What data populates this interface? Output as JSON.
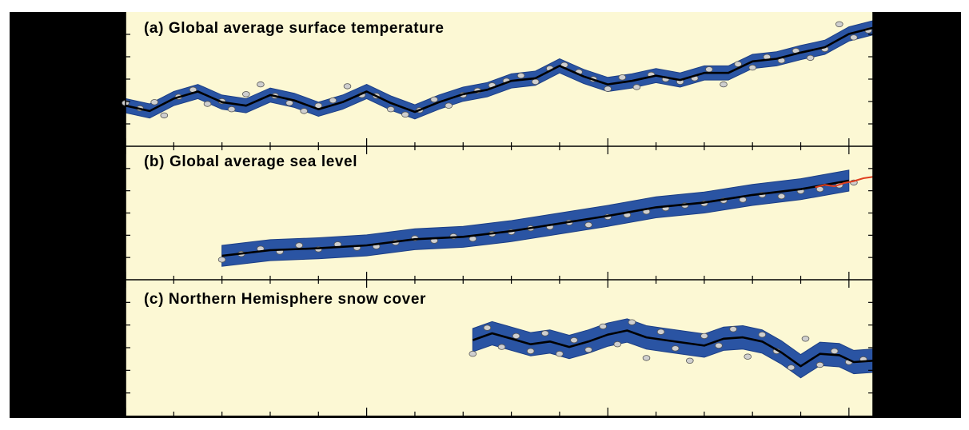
{
  "figure": {
    "colors": {
      "frame": "#000000",
      "panel_background": "#fcf8d4",
      "band": "#2a54a3",
      "band_edge": "#1d3f86",
      "trend": "#000000",
      "points": "#cfcfcf",
      "point_edge": "#555555",
      "satellite": "#e04020"
    }
  },
  "chart_data": [
    {
      "type": "scatter",
      "title": "(a) Global average surface temperature",
      "xlabel": "",
      "ylabel": "",
      "xlim": [
        1850,
        2005
      ],
      "ylim": [
        -0.75,
        0.55
      ],
      "grid": false,
      "band_halfwidth": 0.08,
      "series": [
        {
          "kind": "smoothed",
          "x": [
            1850,
            1855,
            1860,
            1865,
            1870,
            1875,
            1880,
            1885,
            1890,
            1895,
            1900,
            1905,
            1910,
            1915,
            1920,
            1925,
            1930,
            1935,
            1940,
            1945,
            1950,
            1955,
            1960,
            1965,
            1970,
            1975,
            1980,
            1985,
            1990,
            1995,
            2000,
            2005
          ],
          "y": [
            -0.4,
            -0.46,
            -0.32,
            -0.24,
            -0.36,
            -0.4,
            -0.28,
            -0.34,
            -0.44,
            -0.36,
            -0.24,
            -0.37,
            -0.47,
            -0.36,
            -0.27,
            -0.22,
            -0.12,
            -0.09,
            0.05,
            -0.07,
            -0.16,
            -0.12,
            -0.06,
            -0.11,
            -0.03,
            -0.03,
            0.1,
            0.13,
            0.2,
            0.26,
            0.41,
            0.48
          ]
        },
        {
          "kind": "annual",
          "x": [
            1850,
            1853,
            1856,
            1858,
            1861,
            1864,
            1867,
            1870,
            1872,
            1875,
            1878,
            1881,
            1884,
            1887,
            1890,
            1893,
            1896,
            1899,
            1902,
            1905,
            1908,
            1911,
            1914,
            1917,
            1920,
            1923,
            1926,
            1929,
            1932,
            1935,
            1938,
            1941,
            1944,
            1947,
            1950,
            1953,
            1956,
            1959,
            1962,
            1965,
            1968,
            1971,
            1974,
            1977,
            1980,
            1983,
            1986,
            1989,
            1992,
            1995,
            1998,
            2001,
            2004
          ],
          "y": [
            -0.37,
            -0.43,
            -0.36,
            -0.51,
            -0.3,
            -0.22,
            -0.38,
            -0.35,
            -0.44,
            -0.27,
            -0.16,
            -0.29,
            -0.37,
            -0.46,
            -0.4,
            -0.34,
            -0.18,
            -0.28,
            -0.29,
            -0.44,
            -0.5,
            -0.45,
            -0.33,
            -0.4,
            -0.28,
            -0.23,
            -0.17,
            -0.12,
            -0.06,
            -0.13,
            0.02,
            0.06,
            -0.02,
            -0.1,
            -0.21,
            -0.08,
            -0.19,
            -0.05,
            -0.1,
            -0.13,
            -0.09,
            0.01,
            -0.16,
            0.07,
            0.03,
            0.15,
            0.11,
            0.22,
            0.14,
            0.24,
            0.52,
            0.37,
            0.45
          ]
        }
      ]
    },
    {
      "type": "scatter",
      "title": "(b) Global average sea level",
      "xlabel": "",
      "ylabel": "",
      "xlim": [
        1850,
        2005
      ],
      "ylim": [
        -170,
        70
      ],
      "grid": false,
      "band_halfwidth": 22,
      "series": [
        {
          "kind": "smoothed",
          "x": [
            1870,
            1880,
            1890,
            1900,
            1910,
            1920,
            1930,
            1940,
            1950,
            1960,
            1970,
            1980,
            1990,
            2000
          ],
          "y": [
            -140,
            -128,
            -124,
            -118,
            -105,
            -100,
            -88,
            -72,
            -56,
            -38,
            -28,
            -12,
            0,
            18
          ]
        },
        {
          "kind": "annual",
          "x": [
            1870,
            1874,
            1878,
            1882,
            1886,
            1890,
            1894,
            1898,
            1902,
            1906,
            1910,
            1914,
            1918,
            1922,
            1926,
            1930,
            1934,
            1938,
            1942,
            1946,
            1950,
            1954,
            1958,
            1962,
            1966,
            1970,
            1974,
            1978,
            1982,
            1986,
            1990,
            1994,
            1998,
            2001
          ],
          "y": [
            -148,
            -136,
            -125,
            -131,
            -118,
            -126,
            -116,
            -123,
            -120,
            -112,
            -103,
            -108,
            -99,
            -104,
            -94,
            -90,
            -82,
            -79,
            -70,
            -75,
            -58,
            -54,
            -47,
            -40,
            -34,
            -30,
            -24,
            -22,
            -12,
            -15,
            -4,
            0,
            8,
            14
          ]
        },
        {
          "kind": "satellite",
          "x": [
            1993,
            1995,
            1997,
            1999,
            2001,
            2003,
            2005
          ],
          "y": [
            4,
            9,
            6,
            13,
            17,
            23,
            26
          ]
        }
      ]
    },
    {
      "type": "scatter",
      "title": "(c) Northern Hemisphere snow cover",
      "xlabel": "",
      "ylabel": "",
      "xlim": [
        1850,
        2005
      ],
      "ylim": [
        32,
        40.5
      ],
      "grid": false,
      "band_halfwidth": 0.85,
      "series": [
        {
          "kind": "smoothed",
          "x": [
            1922,
            1926,
            1930,
            1934,
            1938,
            1942,
            1946,
            1950,
            1954,
            1958,
            1962,
            1966,
            1970,
            1974,
            1978,
            1982,
            1986,
            1990,
            1994,
            1998,
            2001,
            2005
          ],
          "y": [
            36.8,
            37.3,
            36.9,
            36.5,
            36.7,
            36.3,
            36.7,
            37.2,
            37.5,
            37.0,
            36.8,
            36.6,
            36.4,
            36.9,
            37.0,
            36.7,
            35.9,
            34.9,
            35.8,
            35.7,
            35.2,
            35.3
          ]
        },
        {
          "kind": "annual",
          "x": [
            1922,
            1925,
            1928,
            1931,
            1934,
            1937,
            1940,
            1943,
            1946,
            1949,
            1952,
            1955,
            1958,
            1961,
            1964,
            1967,
            1970,
            1973,
            1976,
            1979,
            1982,
            1985,
            1988,
            1991,
            1994,
            1997,
            2000,
            2003
          ],
          "y": [
            35.8,
            37.7,
            36.3,
            37.1,
            36.0,
            37.3,
            35.8,
            36.8,
            36.1,
            37.8,
            36.5,
            38.1,
            35.5,
            37.4,
            36.2,
            35.3,
            37.1,
            36.4,
            37.6,
            35.6,
            37.2,
            36.0,
            34.8,
            36.9,
            35.0,
            36.0,
            35.2,
            35.4
          ]
        }
      ]
    }
  ]
}
